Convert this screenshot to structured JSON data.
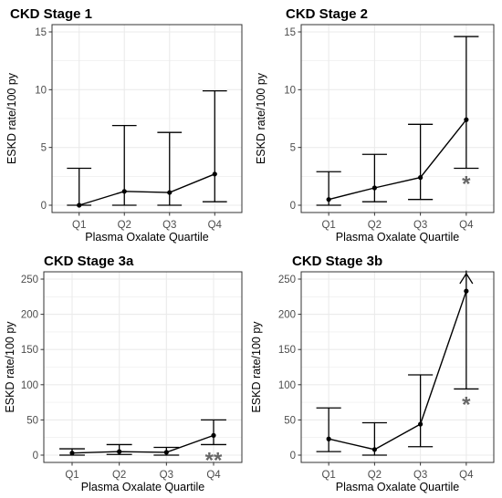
{
  "chart_data": [
    {
      "type": "line",
      "title": "CKD Stage 1",
      "xlabel": "Plasma Oxalate Quartile",
      "ylabel": "ESKD rate/100 py",
      "categories": [
        "Q1",
        "Q2",
        "Q3",
        "Q4"
      ],
      "values": [
        0.0,
        1.2,
        1.1,
        2.7
      ],
      "lower": [
        0.0,
        0.0,
        0.0,
        0.3
      ],
      "upper": [
        3.2,
        6.9,
        6.3,
        9.9
      ],
      "ylim": [
        0,
        15
      ],
      "yticks": [
        "0",
        "5",
        "10",
        "15"
      ],
      "upper_arrow": [
        false,
        false,
        false,
        false
      ],
      "annotations": [
        "",
        "",
        "",
        ""
      ],
      "grid": true
    },
    {
      "type": "line",
      "title": "CKD Stage 2",
      "xlabel": "Plasma Oxalate Quartile",
      "ylabel": "ESKD rate/100 py",
      "categories": [
        "Q1",
        "Q2",
        "Q3",
        "Q4"
      ],
      "values": [
        0.5,
        1.5,
        2.4,
        7.4
      ],
      "lower": [
        0.0,
        0.3,
        0.5,
        3.2
      ],
      "upper": [
        2.9,
        4.4,
        7.0,
        14.6
      ],
      "ylim": [
        0,
        15
      ],
      "yticks": [
        "0",
        "5",
        "10",
        "15"
      ],
      "upper_arrow": [
        false,
        false,
        false,
        false
      ],
      "annotations": [
        "",
        "",
        "",
        "*"
      ],
      "grid": true
    },
    {
      "type": "line",
      "title": "CKD Stage 3a",
      "xlabel": "Plasma Oxalate Quartile",
      "ylabel": "ESKD rate/100 py",
      "categories": [
        "Q1",
        "Q2",
        "Q3",
        "Q4"
      ],
      "values": [
        3,
        5,
        4,
        28
      ],
      "lower": [
        0,
        1,
        0,
        15
      ],
      "upper": [
        9,
        15,
        11,
        50
      ],
      "ylim": [
        0,
        250
      ],
      "yticks": [
        "0",
        "50",
        "100",
        "150",
        "200",
        "250"
      ],
      "upper_arrow": [
        false,
        false,
        false,
        false
      ],
      "annotations": [
        "",
        "",
        "",
        "**"
      ],
      "grid": true
    },
    {
      "type": "line",
      "title": "CKD Stage 3b",
      "xlabel": "Plasma Oxalate Quartile",
      "ylabel": "ESKD rate/100 py",
      "categories": [
        "Q1",
        "Q2",
        "Q3",
        "Q4"
      ],
      "values": [
        23,
        8,
        44,
        233
      ],
      "lower": [
        5,
        0,
        12,
        94
      ],
      "upper": [
        67,
        46,
        114,
        262
      ],
      "ylim": [
        0,
        250
      ],
      "yticks": [
        "0",
        "50",
        "100",
        "150",
        "200",
        "250"
      ],
      "upper_arrow": [
        false,
        false,
        false,
        true
      ],
      "annotations": [
        "",
        "",
        "",
        "*"
      ],
      "grid": true
    }
  ],
  "colors": {
    "line": "#000000",
    "grid": "#ebebeb",
    "panel_border": "#333333",
    "annotation": "#666666"
  }
}
